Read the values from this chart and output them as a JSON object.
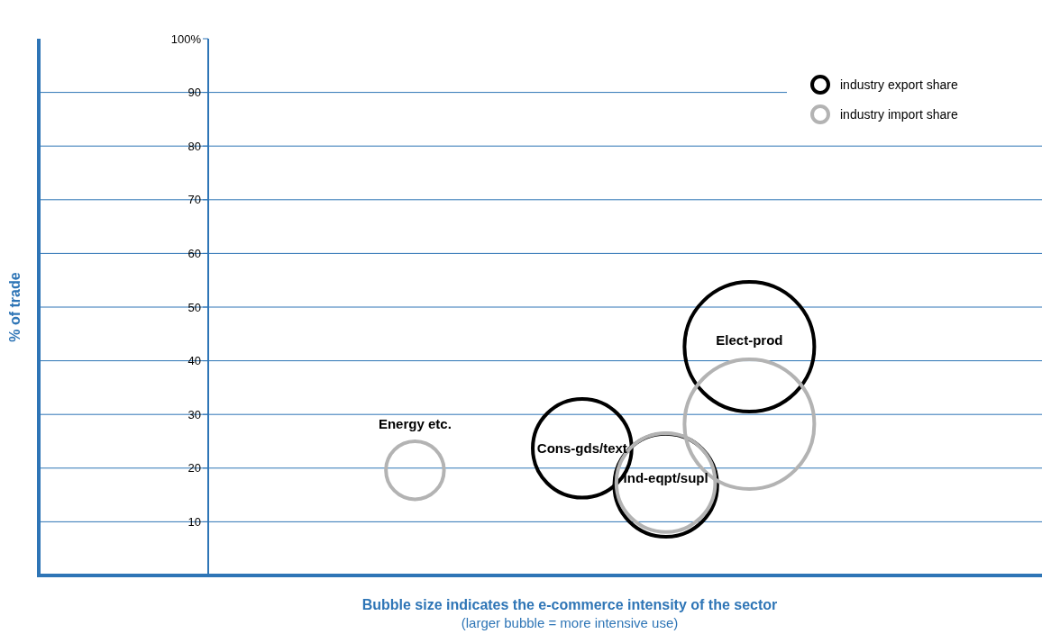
{
  "chart_data": {
    "type": "bubble",
    "xlabel": "Bubble size indicates the e-commerce intensity of the sector",
    "ylabel": "% of trade",
    "annotations": [
      "(larger bubble = more intensive use)"
    ],
    "categories": [
      null,
      null,
      null,
      null,
      "Energy etc.",
      null,
      "Cons-gds/text",
      "Ind-eqpt/supl",
      "Elect-prod",
      null,
      null,
      null
    ],
    "series": [
      {
        "name": "industry export share",
        "color": "#000000",
        "values": [
          null,
          null,
          null,
          null,
          null,
          null,
          23.7,
          16.8,
          42.6,
          null,
          null,
          null
        ],
        "sizes": [
          null,
          null,
          null,
          null,
          null,
          null,
          0.58,
          0.63,
          1,
          null,
          null,
          null
        ]
      },
      {
        "name": "industry import share",
        "color": "#b3b3b3",
        "values": [
          null,
          null,
          null,
          null,
          19.6,
          null,
          null,
          17.3,
          28.2,
          null,
          null,
          null
        ],
        "sizes": [
          null,
          null,
          null,
          null,
          0.2,
          null,
          null,
          0.58,
          1,
          null,
          null,
          null
        ]
      }
    ],
    "ylim": [
      0,
      100
    ],
    "yticks": [
      10,
      20,
      30,
      40,
      50,
      60,
      70,
      80,
      90,
      {
        "value": 100,
        "label": "100%"
      }
    ],
    "grid": "y",
    "legend": "top right",
    "tick_labels": "y"
  }
}
